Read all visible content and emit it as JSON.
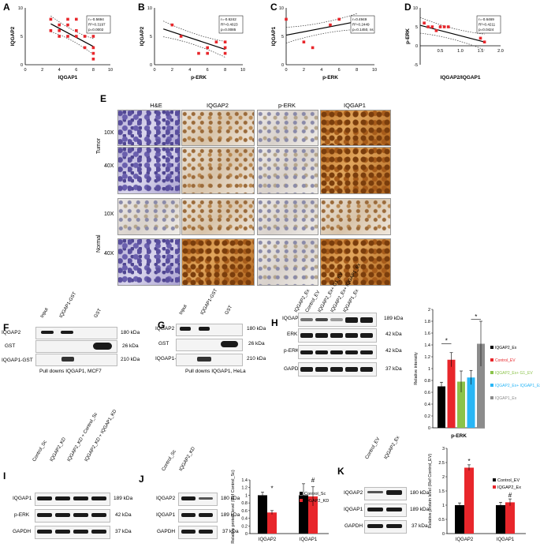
{
  "panels": {
    "A": {
      "letter": "A",
      "ylabel": "IQGAP2",
      "xlabel": "IQGAP1",
      "stats": [
        "r=-0.5694",
        "R²=0.3197",
        "p=0.0002"
      ],
      "xticks": [
        "0",
        "2",
        "4",
        "6",
        "8",
        "10"
      ],
      "yticks": [
        "0",
        "5",
        "10"
      ]
    },
    "B": {
      "letter": "B",
      "ylabel": "IQGAP2",
      "xlabel": "p-ERK",
      "stats": [
        "r=-0.6242",
        "R²=0.4023",
        "p=0.0085"
      ],
      "xticks": [
        "0",
        "2",
        "4",
        "6",
        "8",
        "10"
      ],
      "yticks": [
        "0",
        "5",
        "10"
      ]
    },
    "C": {
      "letter": "C",
      "ylabel": "IQGAP1",
      "xlabel": "p-ERK",
      "stats": [
        "r=0.4949",
        "R²=0.2449",
        "p=0.1450, ns"
      ],
      "xticks": [
        "0",
        "2",
        "4",
        "6",
        "8",
        "10"
      ],
      "yticks": [
        "0",
        "5",
        "10"
      ]
    },
    "D": {
      "letter": "D",
      "ylabel": "p-ERK",
      "xlabel": "IQGAP2/IQGAP1",
      "stats": [
        "r=-0.6469",
        "R²=0.4211",
        "p=0.0424"
      ],
      "xticks": [
        "0.5",
        "1.0",
        "1.5",
        "2.0"
      ],
      "yticks": [
        "-5",
        "0",
        "5",
        "10"
      ]
    },
    "E": {
      "letter": "E",
      "cols": [
        "H&E",
        "IQGAP2",
        "p-ERK",
        "IQGAP1"
      ],
      "groups": [
        "Tumor",
        "Normal"
      ],
      "mags": [
        "10X",
        "40X",
        "10X",
        "40X"
      ]
    },
    "F": {
      "letter": "F",
      "lanes": [
        "Input",
        "IQGAP1-GST",
        "GST"
      ],
      "rows": [
        "IQGAP2",
        "GST",
        "IQGAP1-GST"
      ],
      "kda": [
        "180 kDa",
        "26 kDa",
        "210 kDa"
      ],
      "caption": "Pull downs IQGAP1, MCF7"
    },
    "G": {
      "letter": "G",
      "lanes": [
        "Input",
        "IQGAP1-GST",
        "GST"
      ],
      "rows": [
        "IQGAP2",
        "GST",
        "IQGAP1-GST"
      ],
      "kda": [
        "180 kDa",
        "26 kDa",
        "210 kDa"
      ],
      "caption": "Pull downs IQGAP1, HeLa"
    },
    "H": {
      "letter": "H",
      "lanes": [
        "IQGAP2_Ex",
        "Control_EV",
        "IQGAP2_Ex+ G1_EV",
        "IQGAP2_Ex+ IQGAP1_Ex",
        "IQGAP1_Ex"
      ],
      "rows": [
        "IQGAP1",
        "ERK",
        "p-ERK",
        "GAPDH"
      ],
      "kda": [
        "189 kDa",
        "42 kDa",
        "42 kDa",
        "37 kDa"
      ]
    },
    "I": {
      "letter": "I",
      "lanes": [
        "Control_Sc",
        "IQGAP2_KD",
        "IQGAP2_KD + Control_Sc",
        "IQGAP2_KD + IQGAP1_KD"
      ],
      "rows": [
        "IQGAP1",
        "p-ERK",
        "GAPDH"
      ],
      "kda": [
        "189 kDa",
        "42 kDa",
        "37 kDa"
      ]
    },
    "J": {
      "letter": "J",
      "lanes": [
        "Control_Sc",
        "IQGAP2_KD"
      ],
      "rows": [
        "IQGAP2",
        "IQGAP1",
        "GAPDH"
      ],
      "kda": [
        "180 kDa",
        "189 kDa",
        "37 kDa"
      ]
    },
    "K": {
      "letter": "K",
      "lanes": [
        "Control_EV",
        "IQGAP2_Ex"
      ],
      "rows": [
        "IQGAP2",
        "IQGAP1",
        "GAPDH"
      ],
      "kda": [
        "180 kDa",
        "189 kDa",
        "37 kDa"
      ]
    }
  },
  "chart_data": [
    {
      "id": "A",
      "type": "scatter",
      "xlabel": "IQGAP1",
      "ylabel": "IQGAP2",
      "xlim": [
        0,
        10
      ],
      "ylim": [
        0,
        10
      ],
      "x": [
        3,
        3,
        4,
        4,
        4,
        5,
        5,
        5,
        6,
        6,
        6,
        7,
        7,
        8,
        8,
        8,
        8,
        8,
        8
      ],
      "y": [
        8,
        6,
        7,
        6,
        5,
        8,
        7,
        5,
        8,
        6,
        5,
        5,
        3,
        8,
        7,
        5,
        3,
        2,
        1
      ],
      "fit": [
        [
          3,
          7.2
        ],
        [
          8,
          3.2
        ]
      ]
    },
    {
      "id": "B",
      "type": "scatter",
      "xlabel": "p-ERK",
      "ylabel": "IQGAP2",
      "xlim": [
        0,
        10
      ],
      "ylim": [
        0,
        10
      ],
      "x": [
        2,
        3,
        5,
        6,
        6,
        7,
        8,
        8,
        8
      ],
      "y": [
        7,
        5,
        2,
        3,
        2,
        4,
        4,
        3,
        2
      ],
      "fit": [
        [
          1,
          6.3
        ],
        [
          8,
          2.7
        ]
      ]
    },
    {
      "id": "C",
      "type": "scatter",
      "xlabel": "p-ERK",
      "ylabel": "IQGAP1",
      "xlim": [
        0,
        10
      ],
      "ylim": [
        0,
        10
      ],
      "x": [
        0,
        2,
        3,
        5,
        6,
        8
      ],
      "y": [
        8,
        4,
        3,
        7,
        8,
        8
      ],
      "fit": [
        [
          0,
          5.2
        ],
        [
          8,
          7.6
        ]
      ]
    },
    {
      "id": "D",
      "type": "scatter",
      "xlabel": "IQGAP2/IQGAP1",
      "ylabel": "p-ERK",
      "xlim": [
        0,
        2
      ],
      "ylim": [
        -5,
        10
      ],
      "x": [
        0.1,
        0.2,
        0.3,
        0.4,
        0.5,
        0.6,
        0.7,
        1.5,
        1.6
      ],
      "y": [
        6,
        5,
        5,
        4,
        5,
        5,
        5,
        2,
        1
      ],
      "fit": [
        [
          0,
          5.4
        ],
        [
          1.6,
          1.0
        ]
      ]
    },
    {
      "id": "H",
      "type": "bar",
      "title": "",
      "xlabel": "p-ERK",
      "ylabel": "Relative intensity",
      "ylim": [
        0,
        2
      ],
      "yticks": [
        "0",
        "0.2",
        "0.4",
        "0.6",
        "0.8",
        "1",
        "1.2",
        "1.4",
        "1.6",
        "1.8",
        "2"
      ],
      "series": [
        {
          "name": "IQGAP2_Ex",
          "value": 0.7,
          "err": 0.07,
          "color": "#000000"
        },
        {
          "name": "Control_EV",
          "value": 1.15,
          "err": 0.12,
          "color": "#e8262b"
        },
        {
          "name": "IQGAP2_Ex+ G1_EV",
          "value": 0.78,
          "err": 0.18,
          "color": "#8bc34a"
        },
        {
          "name": "IQGAP2_Ex+ IQGAP1_Ex",
          "value": 0.85,
          "err": 0.12,
          "color": "#29b6f6"
        },
        {
          "name": "IQGAP1_Ex",
          "value": 1.42,
          "err": 0.38,
          "color": "#8c8c8c"
        }
      ],
      "annotations": [
        "*",
        "*"
      ]
    },
    {
      "id": "J",
      "type": "bar",
      "ylabel": "Relative protein level (Ref Control_Sc)",
      "ylim": [
        0,
        1.4
      ],
      "categories": [
        "IQGAP2",
        "IQGAP1"
      ],
      "yticks": [
        "0",
        "0.2",
        "0.4",
        "0.6",
        "0.8",
        "1",
        "1.2",
        "1.4"
      ],
      "series": [
        {
          "name": "Control_Sc",
          "values": [
            1.0,
            1.0
          ],
          "err": [
            0.08,
            0.3
          ],
          "color": "#000000"
        },
        {
          "name": "IQGAP2_KD",
          "values": [
            0.55,
            0.97
          ],
          "err": [
            0.05,
            0.25
          ],
          "color": "#e8262b"
        }
      ],
      "annotations": [
        "*",
        "#"
      ]
    },
    {
      "id": "K",
      "type": "bar",
      "ylabel": "Relative protein level (Ref Control_EV)",
      "ylim": [
        0,
        3
      ],
      "categories": [
        "IQGAP2",
        "IQGAP1"
      ],
      "yticks": [
        "0",
        "0.5",
        "1",
        "1.5",
        "2",
        "2.5",
        "3"
      ],
      "series": [
        {
          "name": "Control_EV",
          "values": [
            1.0,
            1.0
          ],
          "err": [
            0.08,
            0.1
          ],
          "color": "#000000"
        },
        {
          "name": "IQGAP2_Ex",
          "values": [
            2.32,
            1.1
          ],
          "err": [
            0.1,
            0.12
          ],
          "color": "#e8262b"
        }
      ],
      "annotations": [
        "*",
        "#"
      ]
    }
  ]
}
